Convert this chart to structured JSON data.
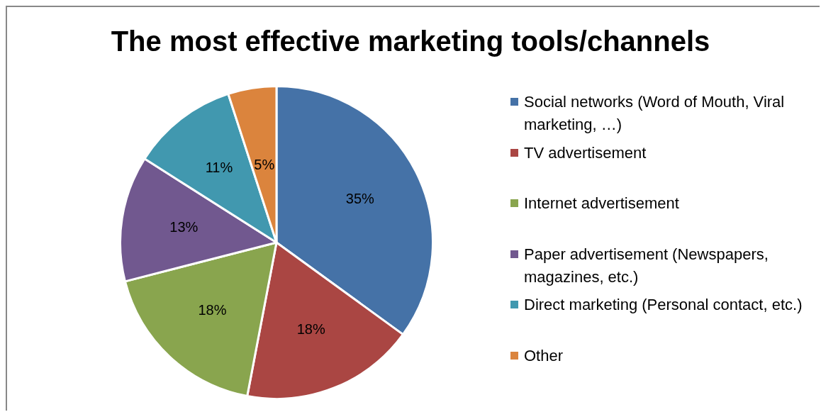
{
  "chart_data": {
    "type": "pie",
    "title": "The most effective marketing tools/channels",
    "categories": [
      "Social networks (Word of Mouth, Viral marketing, …)",
      "TV advertisement",
      "Internet advertisement",
      "Paper advertisement (Newspapers, magazines, etc.)",
      "Direct marketing (Personal contact, etc.)",
      "Other"
    ],
    "values": [
      35,
      18,
      18,
      13,
      11,
      5
    ],
    "colors": [
      "#4572a7",
      "#aa4643",
      "#89a54e",
      "#71588f",
      "#4198af",
      "#db843d"
    ],
    "value_labels": [
      "35%",
      "18%",
      "18%",
      "13%",
      "11%",
      "5%"
    ],
    "legend": "right"
  }
}
